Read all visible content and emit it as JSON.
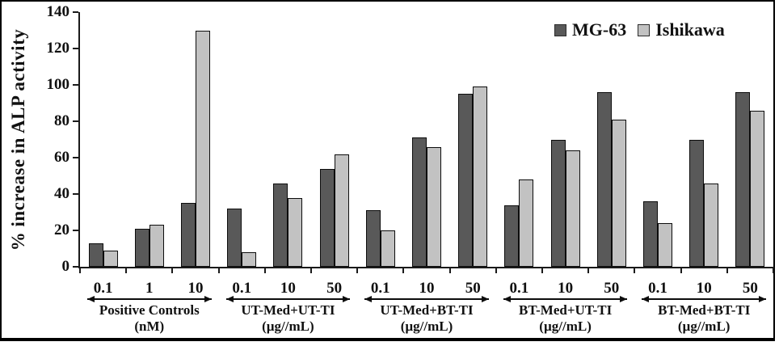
{
  "figure": {
    "background": "#ffffff",
    "border_color": "#000000"
  },
  "chart_data": {
    "type": "bar",
    "title": "",
    "ylabel": "% increase in ALP activity",
    "xlabel": "",
    "ylim": [
      0,
      140
    ],
    "yticks": [
      0,
      20,
      40,
      60,
      80,
      100,
      120,
      140
    ],
    "grid": false,
    "legend_position": "top-right",
    "categories": [
      "0.1",
      "1",
      "10",
      "0.1",
      "10",
      "50",
      "0.1",
      "10",
      "50",
      "0.1",
      "10",
      "50",
      "0.1",
      "10",
      "50"
    ],
    "series": [
      {
        "name": "MG-63",
        "color": "#595959",
        "values": [
          13,
          21,
          35,
          32,
          46,
          54,
          31,
          71,
          95,
          34,
          70,
          96,
          36,
          70,
          96
        ]
      },
      {
        "name": "Ishikawa",
        "color": "#c2c2c2",
        "values": [
          9,
          23,
          130,
          8,
          38,
          62,
          20,
          66,
          99,
          48,
          64,
          81,
          24,
          46,
          86
        ]
      }
    ],
    "groups": [
      {
        "name": "Positive Controls",
        "unit": "(nM)",
        "span": 3
      },
      {
        "name": "UT-Med+UT-TI",
        "unit": "(µg//mL)",
        "span": 3
      },
      {
        "name": "UT-Med+BT-TI",
        "unit": "(µg//mL)",
        "span": 3
      },
      {
        "name": "BT-Med+UT-TI",
        "unit": "(µg//mL)",
        "span": 3
      },
      {
        "name": "BT-Med+BT-TI",
        "unit": "(µg//mL)",
        "span": 3
      }
    ]
  },
  "legend": {
    "items": [
      {
        "label": "MG-63",
        "color": "#595959"
      },
      {
        "label": "Ishikawa",
        "color": "#c2c2c2"
      }
    ]
  }
}
